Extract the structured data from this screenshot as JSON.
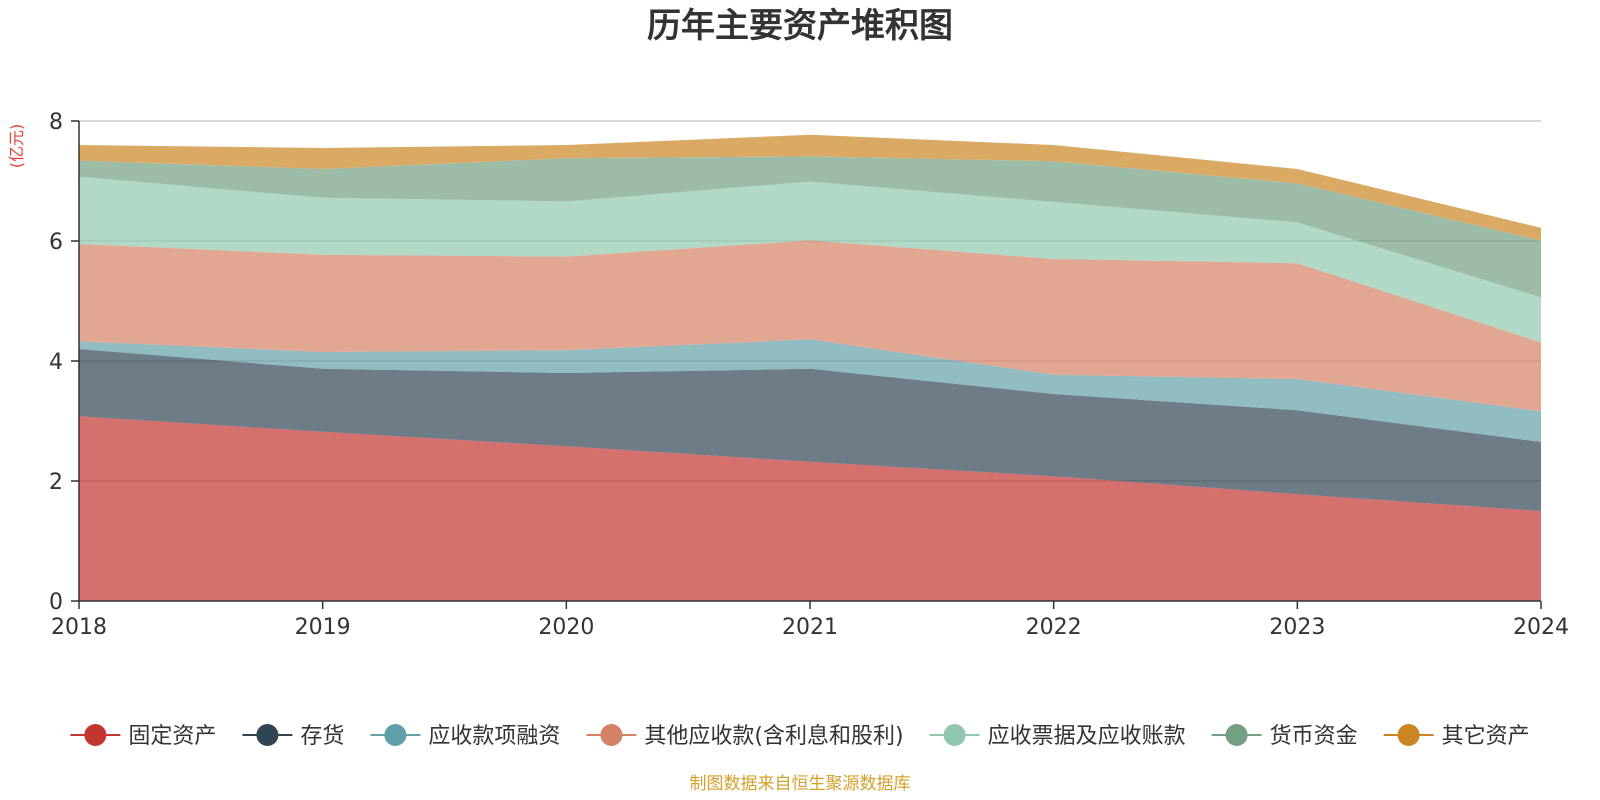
{
  "chart_data": {
    "type": "area",
    "stacked": true,
    "title": "历年主要资产堆积图",
    "ylabel": "(亿元)",
    "xlabel": "",
    "ylim": [
      0,
      8
    ],
    "yticks": [
      "0",
      "2",
      "4",
      "6",
      "8"
    ],
    "categories": [
      "2018",
      "2019",
      "2020",
      "2021",
      "2022",
      "2023",
      "2024"
    ],
    "grid": true,
    "legend_position": "bottom",
    "series": [
      {
        "name": "固定资产",
        "color": "#c23531",
        "values": [
          3.08,
          2.82,
          2.58,
          2.32,
          2.08,
          1.78,
          1.5
        ]
      },
      {
        "name": "存货",
        "color": "#2f4554",
        "values": [
          1.12,
          1.05,
          1.22,
          1.55,
          1.37,
          1.4,
          1.15
        ]
      },
      {
        "name": "应收款项融资",
        "color": "#61a0a8",
        "values": [
          0.13,
          0.28,
          0.38,
          0.49,
          0.32,
          0.52,
          0.51
        ]
      },
      {
        "name": "其他应收款(含利息和股利)",
        "color": "#d48265",
        "values": [
          1.62,
          1.62,
          1.56,
          1.65,
          1.93,
          1.93,
          1.15
        ]
      },
      {
        "name": "应收票据及应收账款",
        "color": "#91c7ae",
        "values": [
          1.12,
          0.95,
          0.92,
          0.98,
          0.95,
          0.68,
          0.75
        ]
      },
      {
        "name": "货币资金",
        "color": "#749f83",
        "values": [
          0.27,
          0.48,
          0.72,
          0.42,
          0.68,
          0.65,
          0.95
        ]
      },
      {
        "name": "其它资产",
        "color": "#ca8622",
        "values": [
          0.26,
          0.35,
          0.22,
          0.36,
          0.27,
          0.24,
          0.21
        ]
      }
    ]
  },
  "footer": {
    "source": "制图数据来自恒生聚源数据库"
  }
}
